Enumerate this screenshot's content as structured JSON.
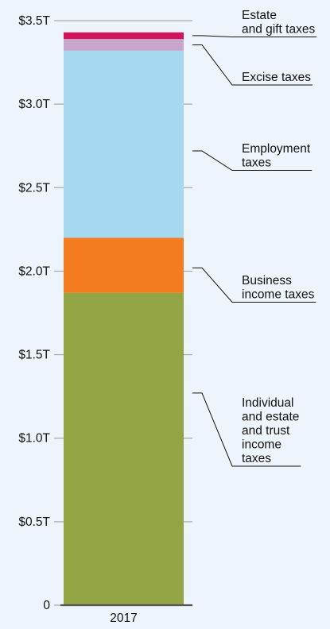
{
  "chart_data": {
    "type": "bar",
    "stacked": true,
    "categories": [
      "2017"
    ],
    "unit": "trillion USD",
    "ylim": [
      0,
      3.5
    ],
    "yticks": [
      {
        "value": 0,
        "label": "0"
      },
      {
        "value": 0.5,
        "label": "$0.5T"
      },
      {
        "value": 1.0,
        "label": "$1.0T"
      },
      {
        "value": 1.5,
        "label": "$1.5T"
      },
      {
        "value": 2.0,
        "label": "$2.0T"
      },
      {
        "value": 2.5,
        "label": "$2.5T"
      },
      {
        "value": 3.0,
        "label": "$3.0T"
      },
      {
        "value": 3.5,
        "label": "$3.5T"
      }
    ],
    "grid": true,
    "legend": "callout labels on right",
    "series": [
      {
        "name": "Individual and estate and trust income taxes",
        "label_lines": [
          "Individual",
          "and estate",
          "and trust",
          "income",
          "taxes"
        ],
        "values": [
          1.87
        ],
        "color": "#93a444"
      },
      {
        "name": "Business income taxes",
        "label_lines": [
          "Business",
          "income taxes"
        ],
        "values": [
          0.33
        ],
        "color": "#f47b20"
      },
      {
        "name": "Employment taxes",
        "label_lines": [
          "Employment",
          "taxes"
        ],
        "values": [
          1.12
        ],
        "color": "#a6d8f0"
      },
      {
        "name": "Excise taxes",
        "label_lines": [
          "Excise taxes"
        ],
        "values": [
          0.07
        ],
        "color": "#c8a6cc"
      },
      {
        "name": "Estate and gift taxes",
        "label_lines": [
          "Estate",
          "and gift taxes"
        ],
        "values": [
          0.04
        ],
        "color": "#d4145a"
      }
    ]
  }
}
